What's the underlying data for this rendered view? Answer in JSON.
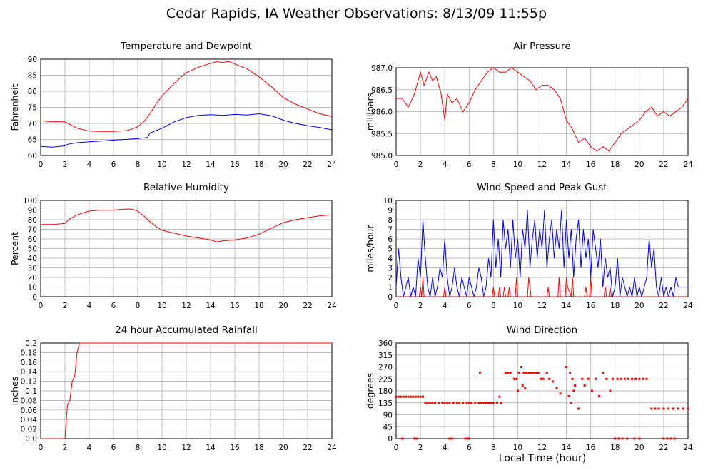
{
  "title": "Cedar Rapids, IA Weather Observations: 8/13/09 11:55p",
  "xlabel_common": "Local Time (hour)",
  "colors": {
    "temperature": "#ff0000",
    "dewpoint": "#0000ff",
    "grid": "#aaaaaa",
    "frame": "#000000"
  },
  "chart_data": [
    {
      "type": "line",
      "title": "Temperature and Dewpoint",
      "ylabel": "Fahrenheit",
      "xlim": [
        0,
        24
      ],
      "ylim": [
        60,
        90
      ],
      "xticks": [
        0,
        2,
        4,
        6,
        8,
        10,
        12,
        14,
        16,
        18,
        20,
        22,
        24
      ],
      "yticks": [
        "60",
        "65",
        "70",
        "75",
        "80",
        "85",
        "90"
      ],
      "grid": true,
      "series": [
        {
          "color": "#ff0000",
          "x": [
            0,
            1,
            2,
            2.5,
            3,
            4,
            5,
            6,
            7,
            7.5,
            8,
            8.5,
            9,
            9.5,
            10,
            11,
            12,
            13,
            14,
            14.5,
            15,
            15.5,
            16,
            17,
            18,
            19,
            20,
            21,
            22,
            23,
            24
          ],
          "y": [
            70.8,
            70.5,
            70.5,
            69.5,
            68.5,
            67.6,
            67.5,
            67.5,
            67.7,
            68.2,
            69,
            70.5,
            73,
            76,
            78.5,
            82.5,
            85.8,
            87.5,
            88.7,
            89.2,
            89,
            89.3,
            88.5,
            87,
            84.5,
            81.5,
            78,
            76,
            74.5,
            73,
            72.2
          ]
        },
        {
          "color": "#0000ff",
          "x": [
            0,
            1,
            2,
            2.2,
            3,
            4,
            5,
            6,
            7,
            8,
            8.8,
            9,
            10,
            10.5,
            11,
            12,
            13,
            14,
            15,
            16,
            17,
            18,
            19,
            20,
            21,
            22,
            23,
            24
          ],
          "y": [
            62.8,
            62.6,
            63,
            63.5,
            64,
            64.3,
            64.5,
            64.8,
            65,
            65.3,
            65.6,
            67,
            68.5,
            69.5,
            70.5,
            71.8,
            72.5,
            72.7,
            72.5,
            72.8,
            72.6,
            73,
            72.4,
            71,
            70,
            69.3,
            68.7,
            68
          ]
        }
      ]
    },
    {
      "type": "line",
      "title": "Air Pressure",
      "ylabel": "millibars",
      "xlim": [
        0,
        24
      ],
      "ylim": [
        985.0,
        987.0
      ],
      "xticks": [
        0,
        2,
        4,
        6,
        8,
        10,
        12,
        14,
        16,
        18,
        20,
        22,
        24
      ],
      "yticks": [
        "985.0",
        "985.5",
        "986.0",
        "986.5",
        "987.0"
      ],
      "grid": true,
      "series": [
        {
          "color": "#ff0000",
          "x": [
            0,
            0.5,
            1,
            1.5,
            2,
            2.3,
            2.7,
            3,
            3.3,
            3.7,
            4,
            4.2,
            4.6,
            5,
            5.5,
            6,
            6.5,
            7,
            7.5,
            8,
            8.5,
            9,
            9.5,
            10,
            10.5,
            11,
            11.5,
            12,
            12.5,
            13,
            13.5,
            14,
            14.5,
            15,
            15.5,
            16,
            16.5,
            17,
            17.5,
            18,
            18.5,
            19,
            19.5,
            20,
            20.5,
            21,
            21.5,
            22,
            22.5,
            23,
            23.5,
            24
          ],
          "y": [
            986.3,
            986.3,
            986.1,
            986.4,
            986.9,
            986.6,
            986.9,
            986.7,
            986.8,
            986.4,
            985.8,
            986.4,
            986.2,
            986.3,
            986.0,
            986.2,
            986.5,
            986.7,
            986.9,
            987.0,
            986.9,
            986.9,
            987.0,
            986.9,
            986.8,
            986.7,
            986.5,
            986.6,
            986.6,
            986.5,
            986.3,
            985.8,
            985.6,
            985.3,
            985.4,
            985.2,
            985.1,
            985.2,
            985.1,
            985.3,
            985.5,
            985.6,
            985.7,
            985.8,
            986.0,
            986.1,
            985.9,
            986.0,
            985.9,
            986.0,
            986.1,
            986.3
          ]
        }
      ]
    },
    {
      "type": "line",
      "title": "Relative Humidity",
      "ylabel": "Percent",
      "xlim": [
        0,
        24
      ],
      "ylim": [
        0,
        100
      ],
      "xticks": [
        0,
        2,
        4,
        6,
        8,
        10,
        12,
        14,
        16,
        18,
        20,
        22,
        24
      ],
      "yticks": [
        "0",
        "10",
        "20",
        "30",
        "40",
        "50",
        "60",
        "70",
        "80",
        "90",
        "100"
      ],
      "grid": true,
      "series": [
        {
          "color": "#ff0000",
          "x": [
            0,
            1,
            2,
            2.3,
            3,
            4,
            5,
            6,
            7,
            7.5,
            8,
            8.5,
            9,
            9.5,
            10,
            11,
            12,
            13,
            14,
            14.5,
            15,
            16,
            17,
            18,
            19,
            20,
            21,
            22,
            23,
            24
          ],
          "y": [
            75,
            75,
            76,
            80,
            85,
            89,
            90,
            90,
            91,
            91,
            89,
            84,
            78,
            73,
            69,
            66,
            63,
            61,
            59,
            57,
            58,
            59,
            61,
            65,
            71,
            77,
            80,
            82,
            84,
            85
          ]
        }
      ]
    },
    {
      "type": "line",
      "title": "Wind Speed and Peak Gust",
      "ylabel": "miles/hour",
      "xlim": [
        0,
        24
      ],
      "ylim": [
        0,
        10
      ],
      "xticks": [
        0,
        2,
        4,
        6,
        8,
        10,
        12,
        14,
        16,
        18,
        20,
        22,
        24
      ],
      "yticks": [
        "0",
        "1",
        "2",
        "3",
        "4",
        "5",
        "6",
        "7",
        "8",
        "9",
        "10"
      ],
      "grid": true,
      "series": [
        {
          "color": "#0000ff",
          "x": [
            0,
            0.2,
            0.4,
            0.6,
            0.8,
            1,
            1.2,
            1.4,
            1.6,
            1.8,
            2,
            2.2,
            2.4,
            2.6,
            2.8,
            3,
            3.2,
            3.4,
            3.6,
            3.8,
            4,
            4.2,
            4.4,
            4.6,
            4.8,
            5,
            5.2,
            5.4,
            5.6,
            5.8,
            6,
            6.2,
            6.4,
            6.6,
            6.8,
            7,
            7.2,
            7.4,
            7.6,
            7.8,
            8,
            8.2,
            8.4,
            8.6,
            8.8,
            9,
            9.2,
            9.4,
            9.6,
            9.8,
            10,
            10.2,
            10.4,
            10.6,
            10.8,
            11,
            11.2,
            11.4,
            11.6,
            11.8,
            12,
            12.2,
            12.4,
            12.6,
            12.8,
            13,
            13.2,
            13.4,
            13.6,
            13.8,
            14,
            14.2,
            14.4,
            14.6,
            14.8,
            15,
            15.2,
            15.4,
            15.6,
            15.8,
            16,
            16.2,
            16.4,
            16.6,
            16.8,
            17,
            17.2,
            17.4,
            17.6,
            17.8,
            18,
            18.2,
            18.4,
            18.6,
            18.8,
            19,
            19.2,
            19.4,
            19.6,
            19.8,
            20,
            20.2,
            20.4,
            20.6,
            20.8,
            21,
            21.2,
            21.4,
            21.6,
            21.8,
            22,
            22.2,
            22.4,
            22.6,
            22.8,
            23,
            23.2,
            23.4,
            23.6,
            23.8,
            24
          ],
          "y": [
            1,
            5,
            2,
            0,
            1,
            2,
            0,
            1,
            0,
            4,
            2,
            8,
            4,
            1,
            0,
            2,
            0,
            1,
            3,
            2,
            6,
            2,
            0,
            1,
            3,
            1,
            0,
            2,
            1,
            0,
            2,
            1,
            0,
            1,
            3,
            2,
            0,
            1,
            4,
            2,
            8,
            3,
            6,
            2,
            8,
            5,
            7,
            3,
            8,
            4,
            6,
            2,
            7,
            5,
            9,
            3,
            6,
            8,
            4,
            7,
            5,
            9,
            3,
            6,
            8,
            4,
            7,
            5,
            9,
            3,
            8,
            4,
            7,
            2,
            6,
            8,
            3,
            7,
            4,
            6,
            2,
            7,
            5,
            3,
            6,
            1,
            4,
            2,
            3,
            0,
            1,
            4,
            0,
            2,
            1,
            0,
            1,
            0,
            2,
            0,
            1,
            0,
            1,
            2,
            6,
            3,
            5,
            1,
            0,
            2,
            0,
            1,
            0,
            1,
            0,
            2,
            1,
            1,
            1,
            1,
            1
          ]
        },
        {
          "color": "#ff0000",
          "x": [
            0,
            1.9,
            2.0,
            2.1,
            2.2,
            2.3,
            2.4,
            3.9,
            4.0,
            4.1,
            7.9,
            8.0,
            8.1,
            8.4,
            8.5,
            8.6,
            8.8,
            8.9,
            9.0,
            9.2,
            9.3,
            9.4,
            9.8,
            9.9,
            10.0,
            10.8,
            10.9,
            11.0,
            11.1,
            12.4,
            12.5,
            12.6,
            13.3,
            13.4,
            13.5,
            13.9,
            14.0,
            14.1,
            14.4,
            14.5,
            14.6,
            15.5,
            15.6,
            15.7,
            15.9,
            16.0,
            16.1,
            17.1,
            17.2,
            17.3,
            17.5,
            17.6,
            17.7,
            24
          ],
          "y": [
            0,
            0,
            1,
            0,
            2,
            0,
            0,
            0,
            1,
            0,
            0,
            1,
            0,
            0,
            1,
            0,
            0,
            1,
            0,
            0,
            1,
            0,
            0,
            2,
            0,
            0,
            2,
            1,
            0,
            0,
            1,
            0,
            0,
            2,
            0,
            0,
            2,
            1,
            0,
            2,
            0,
            0,
            1,
            0,
            0,
            2,
            0,
            0,
            1,
            0,
            0,
            1,
            0,
            0
          ]
        }
      ]
    },
    {
      "type": "line",
      "title": "24 hour Accumulated Rainfall",
      "ylabel": "Inches",
      "xlim": [
        0,
        24
      ],
      "ylim": [
        0,
        0.2
      ],
      "xticks": [
        0,
        2,
        4,
        6,
        8,
        10,
        12,
        14,
        16,
        18,
        20,
        22,
        24
      ],
      "yticks": [
        "0.0",
        "0.02",
        "0.04",
        "0.06",
        "0.08",
        "0.1",
        "0.12",
        "0.14",
        "0.16",
        "0.18",
        "0.2"
      ],
      "grid": true,
      "series": [
        {
          "color": "#ff0000",
          "x": [
            0,
            2.0,
            2.2,
            2.4,
            2.6,
            2.8,
            3.0,
            3.2,
            3.4,
            24
          ],
          "y": [
            0,
            0,
            0.07,
            0.08,
            0.12,
            0.13,
            0.18,
            0.2,
            0.2,
            0.2
          ]
        }
      ]
    },
    {
      "type": "scatter",
      "title": "Wind Direction",
      "ylabel": "degrees",
      "xlabel": "Local Time (hour)",
      "xlim": [
        0,
        24
      ],
      "ylim": [
        0,
        360
      ],
      "xticks": [
        0,
        2,
        4,
        6,
        8,
        10,
        12,
        14,
        16,
        18,
        20,
        22,
        24
      ],
      "yticks": [
        "0",
        "45",
        "90",
        "135",
        "180",
        "225",
        "270",
        "315",
        "360"
      ],
      "grid": true,
      "series": [
        {
          "color": "#ff0000",
          "x": [
            0,
            0.2,
            0.4,
            0.6,
            0.8,
            1,
            1.2,
            1.4,
            1.6,
            1.8,
            2,
            2.2,
            0.5,
            1.5,
            1.7,
            2.4,
            2.6,
            2.8,
            3,
            3.2,
            3.5,
            3.8,
            4,
            4.2,
            4.4,
            4.7,
            5,
            5.2,
            5.5,
            5.8,
            6,
            6.2,
            6.5,
            6.8,
            7,
            7.2,
            7.4,
            7.6,
            7.8,
            8,
            8.3,
            8.6,
            4.4,
            4.6,
            5.7,
            5.9,
            6,
            6.9,
            8.5,
            9,
            9.2,
            9.4,
            9.7,
            9.9,
            10.1,
            10.3,
            10.5,
            10.7,
            10.9,
            11.1,
            11.3,
            11.5,
            11.7,
            10.0,
            10.4,
            10.6,
            11.9,
            12.1,
            12.4,
            12.6,
            12.9,
            13.2,
            13.5,
            14,
            14.3,
            14.5,
            14.7,
            14.2,
            14.4,
            14.6,
            15,
            15.3,
            15.5,
            15.8,
            16.1,
            16.4,
            16.7,
            17,
            17.3,
            17.6,
            17.8,
            18.2,
            18.5,
            18.8,
            19.1,
            19.4,
            19.7,
            20,
            20.3,
            20.6,
            18.0,
            18.3,
            18.6,
            19.0,
            19.6,
            20.0,
            21,
            21.3,
            21.6,
            22,
            22.4,
            22.8,
            23.2,
            23.6,
            24,
            22.0,
            22.3,
            22.6,
            22.9
          ],
          "y": [
            158,
            158,
            158,
            158,
            158,
            158,
            158,
            158,
            158,
            158,
            158,
            158,
            0,
            0,
            0,
            135,
            135,
            135,
            135,
            135,
            135,
            135,
            135,
            135,
            135,
            135,
            135,
            135,
            135,
            135,
            135,
            135,
            135,
            135,
            135,
            135,
            135,
            135,
            135,
            135,
            135,
            135,
            0,
            0,
            0,
            0,
            0,
            248,
            158,
            248,
            248,
            248,
            225,
            225,
            248,
            270,
            248,
            248,
            248,
            248,
            248,
            248,
            248,
            180,
            200,
            190,
            225,
            225,
            248,
            225,
            215,
            190,
            170,
            270,
            248,
            225,
            200,
            160,
            135,
            180,
            113,
            225,
            200,
            225,
            180,
            225,
            160,
            248,
            225,
            180,
            225,
            225,
            225,
            225,
            225,
            225,
            225,
            225,
            225,
            225,
            0,
            0,
            0,
            0,
            0,
            0,
            113,
            113,
            113,
            113,
            113,
            113,
            113,
            113,
            113,
            0,
            0,
            0,
            0
          ]
        }
      ]
    }
  ]
}
